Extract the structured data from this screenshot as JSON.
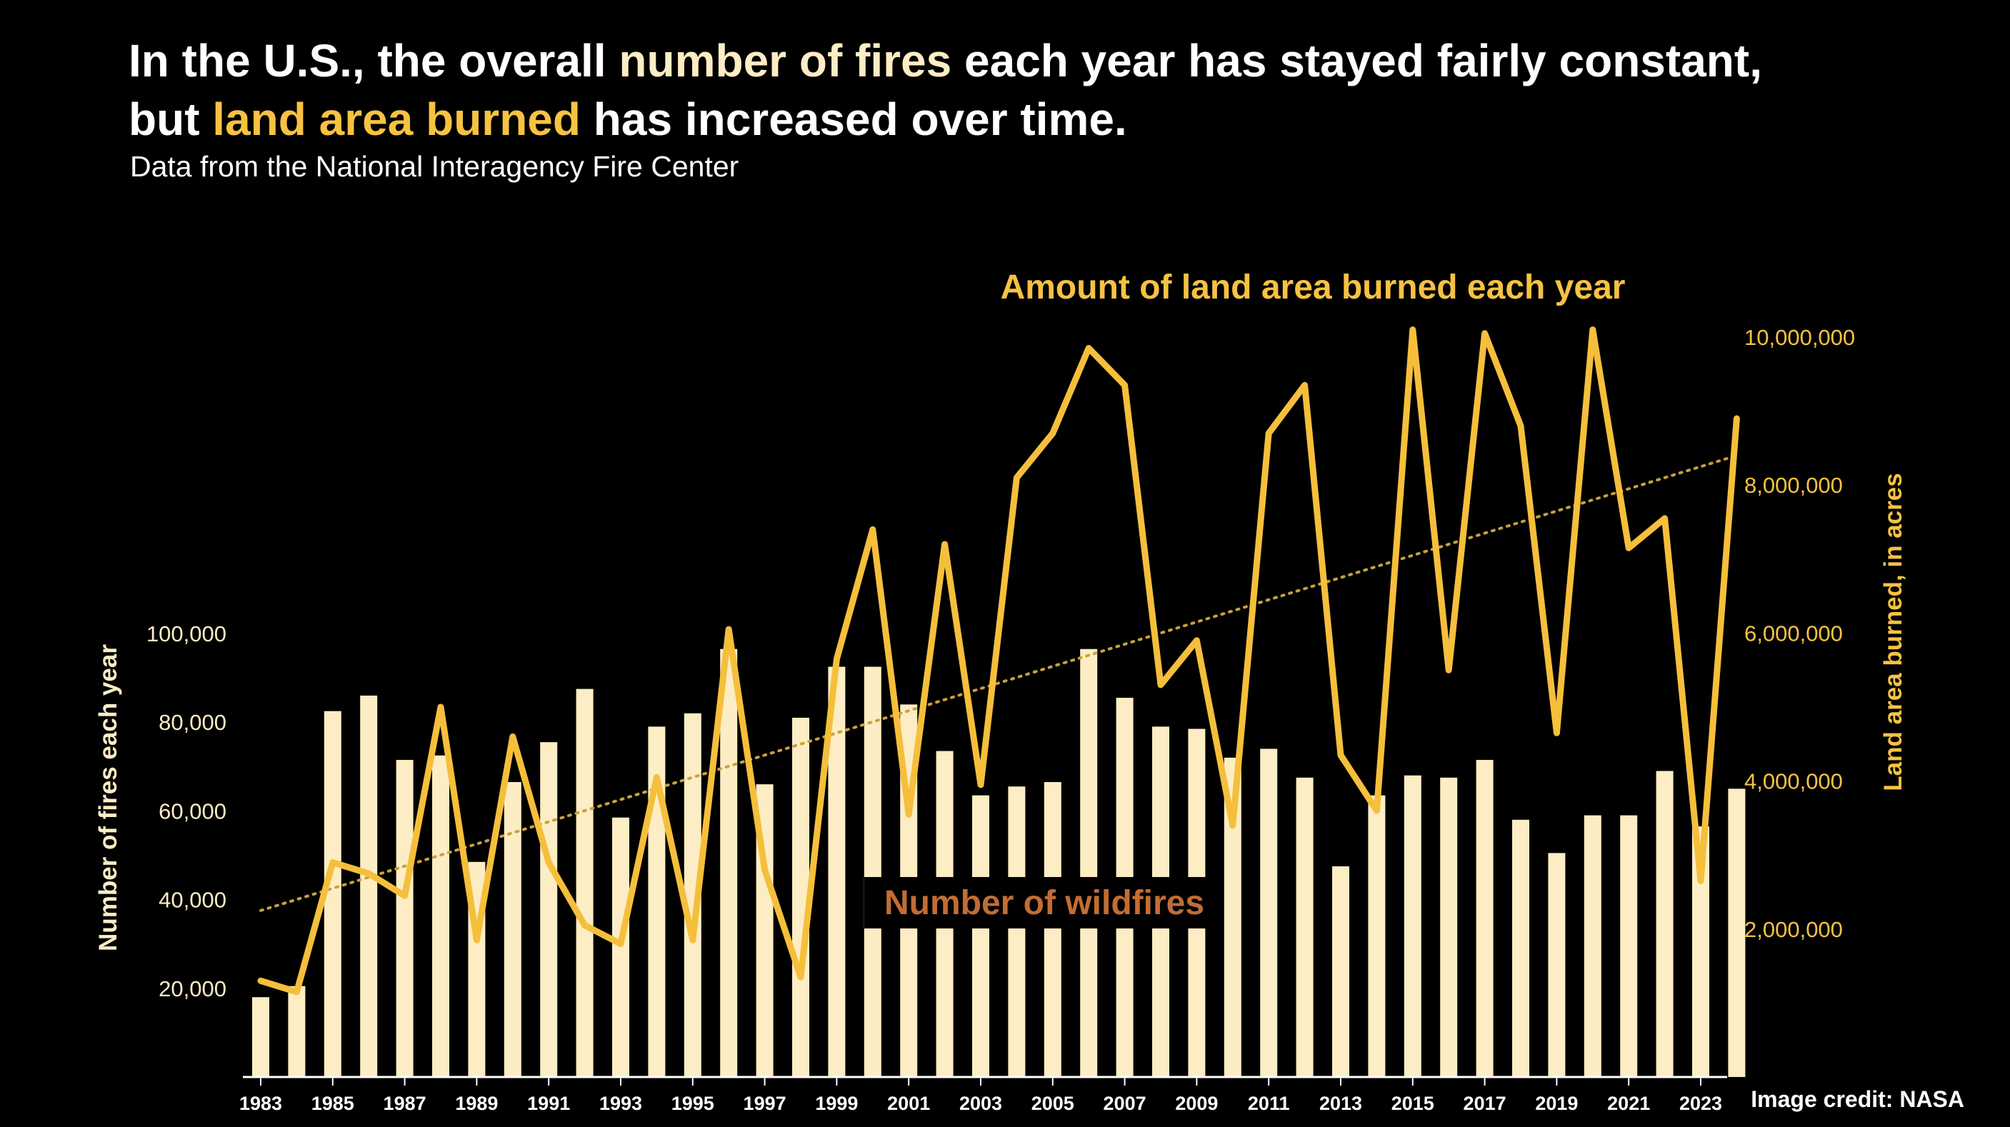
{
  "title": {
    "part1": "In the U.S., the overall ",
    "highlight1": "number of fires",
    "part2": " each year has stayed fairly constant,",
    "part3": "but ",
    "highlight2": "land area burned",
    "part4": " has increased over time."
  },
  "subtitle": "Data from the National Interagency Fire Center",
  "credit": "Image credit: NASA",
  "colors": {
    "bars": "#fdedc4",
    "line": "#f5bf3c",
    "line_label": "#f7c242",
    "bar_label": "#c26d34",
    "background": "#000000"
  },
  "chart_data": {
    "type": "bar+line",
    "x": [
      1983,
      1984,
      1985,
      1986,
      1987,
      1988,
      1989,
      1990,
      1991,
      1992,
      1993,
      1994,
      1995,
      1996,
      1997,
      1998,
      1999,
      2000,
      2001,
      2002,
      2003,
      2004,
      2005,
      2006,
      2007,
      2008,
      2009,
      2010,
      2011,
      2012,
      2013,
      2014,
      2015,
      2016,
      2017,
      2018,
      2019,
      2020,
      2021,
      2022,
      2023,
      2024
    ],
    "x_tick_labels": [
      "1983",
      "1985",
      "1987",
      "1989",
      "1991",
      "1993",
      "1995",
      "1997",
      "1999",
      "2001",
      "2003",
      "2005",
      "2007",
      "2009",
      "2011",
      "2013",
      "2015",
      "2017",
      "2019",
      "2021",
      "2023"
    ],
    "series": [
      {
        "name": "Number of wildfires",
        "axis": "left",
        "type": "bar",
        "values": [
          18000,
          20500,
          82500,
          86000,
          71500,
          72500,
          48500,
          66500,
          75500,
          87500,
          58500,
          79000,
          82000,
          96500,
          66000,
          81000,
          92500,
          92500,
          84000,
          73500,
          63500,
          65500,
          66500,
          96500,
          85500,
          79000,
          78500,
          72000,
          74000,
          67500,
          47500,
          63500,
          68000,
          67500,
          71500,
          58000,
          50500,
          59000,
          59000,
          69000,
          56500,
          65000
        ]
      },
      {
        "name": "Amount of land area burned each year",
        "axis": "right",
        "type": "line",
        "values": [
          1300000,
          1150000,
          2900000,
          2750000,
          2450000,
          5000000,
          1850000,
          4600000,
          2900000,
          2050000,
          1800000,
          4050000,
          1850000,
          6050000,
          2800000,
          1350000,
          5650000,
          7400000,
          3550000,
          7200000,
          3950000,
          8100000,
          8700000,
          9850000,
          9350000,
          5300000,
          5900000,
          3400000,
          8700000,
          9350000,
          4350000,
          3600000,
          10100000,
          5500000,
          10050000,
          8800000,
          4650000,
          10100000,
          7150000,
          7550000,
          2650000,
          8900000
        ]
      }
    ],
    "trend_line": {
      "axis": "right",
      "from": {
        "x": 1983,
        "y": 2250000
      },
      "to": {
        "x": 2024,
        "y": 8400000
      }
    },
    "left_axis": {
      "label": "Number of fires each year",
      "ticks": [
        20000,
        40000,
        60000,
        80000,
        100000
      ],
      "tick_labels": [
        "20,000",
        "40,000",
        "60,000",
        "80,000",
        "100,000"
      ],
      "range": [
        0,
        100000
      ]
    },
    "right_axis": {
      "label": "Land area burned, in acres",
      "ticks": [
        2000000,
        4000000,
        6000000,
        8000000,
        10000000
      ],
      "tick_labels": [
        "2,000,000",
        "4,000,000",
        "6,000,000",
        "8,000,000",
        "10,000,000"
      ],
      "range": [
        0,
        10000000
      ]
    },
    "annotations": {
      "line_label": "Amount of land area burned each year",
      "bar_label": "Number of wildfires"
    },
    "grid": false,
    "legend": "none"
  }
}
